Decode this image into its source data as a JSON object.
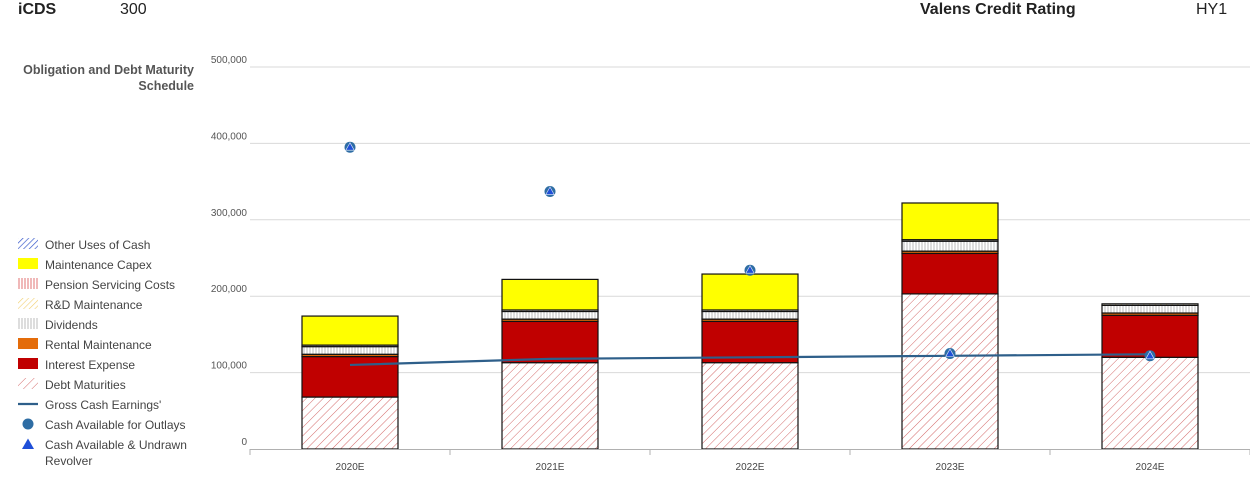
{
  "header": {
    "app": "iCDS",
    "score": "300",
    "title": "Valens Credit Rating",
    "grade": "HY1"
  },
  "chart_data": {
    "type": "bar",
    "stacked": true,
    "title": "Obligation and Debt Maturity Schedule",
    "categories": [
      "2020E",
      "2021E",
      "2022E",
      "2023E",
      "2024E"
    ],
    "ylim": [
      0,
      500000
    ],
    "yticks": [
      0,
      100000,
      200000,
      300000,
      400000,
      500000
    ],
    "ytick_labels": [
      "0",
      "100,000",
      "200,000",
      "300,000",
      "400,000",
      "500,000"
    ],
    "grid": true,
    "legend_position": "left",
    "series": [
      {
        "name": "Debt Maturities",
        "kind": "bar",
        "pattern": "red-hatch",
        "values": [
          68000,
          113000,
          113000,
          203000,
          120000
        ]
      },
      {
        "name": "Interest Expense",
        "kind": "bar",
        "color": "#c00000",
        "values": [
          53000,
          54000,
          54000,
          53000,
          55000
        ]
      },
      {
        "name": "Rental Maintenance",
        "kind": "bar",
        "color": "#e46c0a",
        "values": [
          3000,
          3000,
          3000,
          3000,
          3000
        ]
      },
      {
        "name": "Dividends",
        "kind": "bar",
        "pattern": "grey-vertical",
        "values": [
          10000,
          10000,
          10000,
          13000,
          10000
        ]
      },
      {
        "name": "R&D Maintenance",
        "kind": "bar",
        "pattern": "yellow-hatch",
        "values": [
          2000,
          2000,
          2000,
          2000,
          2000
        ]
      },
      {
        "name": "Pension Servicing Costs",
        "kind": "bar",
        "pattern": "red-vertical",
        "values": [
          0,
          0,
          0,
          0,
          0
        ]
      },
      {
        "name": "Maintenance Capex",
        "kind": "bar",
        "color": "#ffff00",
        "values": [
          38000,
          40000,
          47000,
          48000,
          0
        ]
      },
      {
        "name": "Other Uses of Cash",
        "kind": "bar",
        "pattern": "blue-hatch",
        "values": [
          0,
          0,
          0,
          0,
          0
        ]
      },
      {
        "name": "Gross Cash Earnings'",
        "kind": "line",
        "color": "#2e5f8a",
        "values": [
          110000,
          118000,
          120000,
          122000,
          124000
        ]
      },
      {
        "name": "Cash Available for Outlays",
        "kind": "scatter",
        "marker": "circle",
        "color": "#2e6da4",
        "values": [
          395000,
          337000,
          234000,
          125000,
          122000
        ]
      },
      {
        "name": "Cash Available & Undrawn Revolver",
        "kind": "scatter",
        "marker": "triangle",
        "color": "#1f4fd8",
        "values": [
          395000,
          337000,
          234000,
          125000,
          122000
        ]
      }
    ]
  },
  "legend": [
    {
      "label": "Other Uses of Cash",
      "symbol": "blue-hatch"
    },
    {
      "label": "Maintenance Capex",
      "symbol": "yellow"
    },
    {
      "label": "Pension Servicing Costs",
      "symbol": "red-vertical"
    },
    {
      "label": "R&D Maintenance",
      "symbol": "yellow-hatch"
    },
    {
      "label": "Dividends",
      "symbol": "grey-vertical"
    },
    {
      "label": "Rental Maintenance",
      "symbol": "orange"
    },
    {
      "label": "Interest Expense",
      "symbol": "darkred"
    },
    {
      "label": "Debt Maturities",
      "symbol": "red-hatch"
    },
    {
      "label": "Gross Cash Earnings'",
      "symbol": "line"
    },
    {
      "label": "Cash Available for Outlays",
      "symbol": "circle"
    },
    {
      "label": "Cash Available & Undrawn Revolver",
      "symbol": "triangle"
    }
  ]
}
